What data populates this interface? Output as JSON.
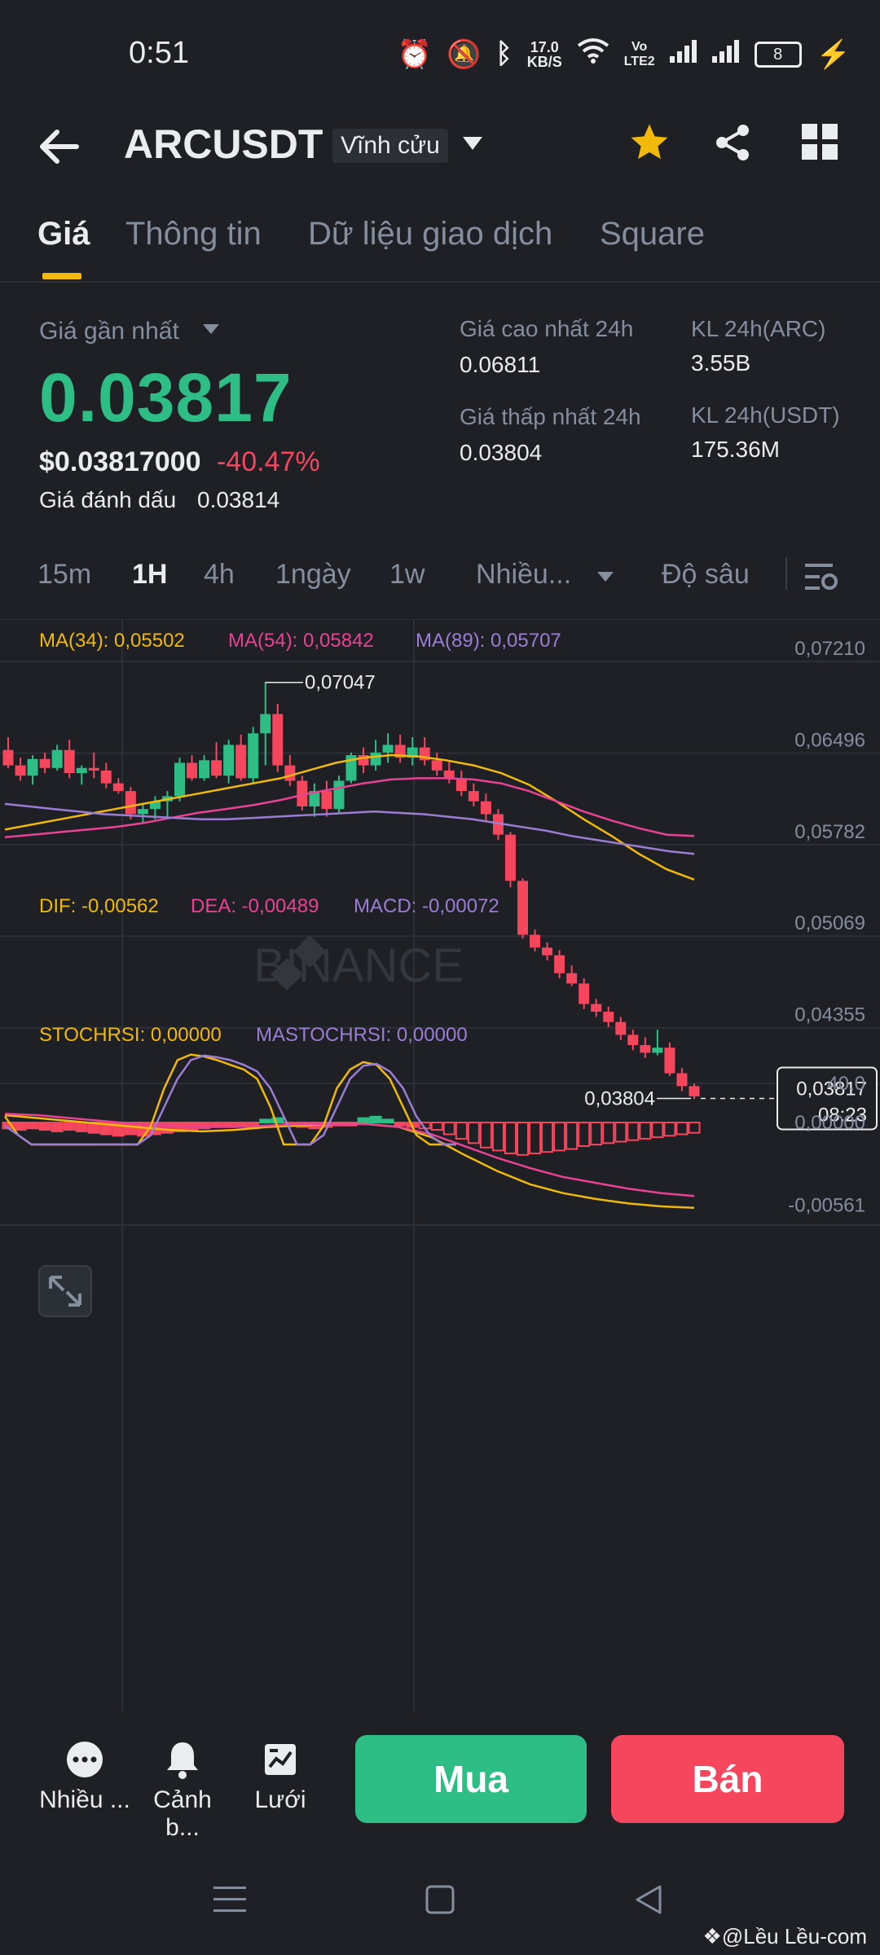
{
  "status": {
    "time": "0:51",
    "net_speed_top": "17.0",
    "net_speed_unit": "KB/S",
    "volte": "Vo\nLTE2",
    "battery": "8"
  },
  "header": {
    "symbol": "ARCUSDT",
    "badge": "Vĩnh cửu"
  },
  "tabs": [
    {
      "label": "Giá"
    },
    {
      "label": "Thông tin"
    },
    {
      "label": "Dữ liệu giao dịch"
    },
    {
      "label": "Square"
    }
  ],
  "ticker": {
    "last_label": "Giá gần nhất",
    "last_price": "0.03817",
    "usd_price": "$0.03817000",
    "change": "-40.47%",
    "mark_label": "Giá đánh dấu",
    "mark_price": "0.03814",
    "high_label": "Giá cao nhất 24h",
    "high_value": "0.06811",
    "low_label": "Giá thấp nhất 24h",
    "low_value": "0.03804",
    "vol_arc_label": "KL 24h(ARC)",
    "vol_arc_value": "3.55B",
    "vol_usdt_label": "KL 24h(USDT)",
    "vol_usdt_value": "175.36M"
  },
  "intervals": [
    {
      "label": "15m"
    },
    {
      "label": "1H"
    },
    {
      "label": "4h"
    },
    {
      "label": "1ngày"
    },
    {
      "label": "1w"
    },
    {
      "label": "Nhiều..."
    },
    {
      "label": "Độ sâu"
    }
  ],
  "chart_data": {
    "type": "candlestick",
    "watermark": "BINANCE",
    "ma_legend": [
      {
        "label": "MA(34): 0,05502",
        "color": "#f0b90b"
      },
      {
        "label": "MA(54): 0,05842",
        "color": "#e84393"
      },
      {
        "label": "MA(89): 0,05707",
        "color": "#9b7dd4"
      }
    ],
    "y_ticks": [
      "0,07210",
      "0,06496",
      "0,05782",
      "0,05069",
      "0,04355"
    ],
    "y_range": [
      0.0408,
      0.0735
    ],
    "high_marker": "0,07047",
    "low_marker": "0,03804",
    "current_price": "0,03817",
    "countdown": "08:23",
    "candles": [
      [
        0.0652,
        0.0662,
        0.0638,
        0.064
      ],
      [
        0.064,
        0.0646,
        0.0628,
        0.0632
      ],
      [
        0.0632,
        0.0648,
        0.0625,
        0.0645
      ],
      [
        0.0645,
        0.065,
        0.0634,
        0.0638
      ],
      [
        0.0638,
        0.0656,
        0.0636,
        0.0652
      ],
      [
        0.0652,
        0.066,
        0.063,
        0.0634
      ],
      [
        0.0634,
        0.064,
        0.0625,
        0.0638
      ],
      [
        0.0638,
        0.065,
        0.063,
        0.0636
      ],
      [
        0.0636,
        0.0642,
        0.0622,
        0.0626
      ],
      [
        0.0626,
        0.063,
        0.0618,
        0.062
      ],
      [
        0.062,
        0.0623,
        0.0598,
        0.0602
      ],
      [
        0.0602,
        0.061,
        0.0595,
        0.0606
      ],
      [
        0.0606,
        0.0616,
        0.0598,
        0.0612
      ],
      [
        0.0612,
        0.062,
        0.0598,
        0.0616
      ],
      [
        0.0616,
        0.0646,
        0.0612,
        0.0642
      ],
      [
        0.0642,
        0.0648,
        0.0628,
        0.063
      ],
      [
        0.063,
        0.0648,
        0.0628,
        0.0644
      ],
      [
        0.0644,
        0.0658,
        0.063,
        0.0632
      ],
      [
        0.0632,
        0.066,
        0.0626,
        0.0656
      ],
      [
        0.0656,
        0.0664,
        0.0628,
        0.063
      ],
      [
        0.063,
        0.067,
        0.0626,
        0.0665
      ],
      [
        0.0665,
        0.0705,
        0.064,
        0.068
      ],
      [
        0.068,
        0.0688,
        0.0635,
        0.064
      ],
      [
        0.064,
        0.0648,
        0.0624,
        0.0628
      ],
      [
        0.0628,
        0.0632,
        0.0605,
        0.0608
      ],
      [
        0.0608,
        0.0626,
        0.06,
        0.062
      ],
      [
        0.062,
        0.0628,
        0.06,
        0.0606
      ],
      [
        0.0606,
        0.0632,
        0.0602,
        0.0628
      ],
      [
        0.0628,
        0.065,
        0.0626,
        0.0648
      ],
      [
        0.0648,
        0.0654,
        0.0634,
        0.064
      ],
      [
        0.064,
        0.066,
        0.0636,
        0.065
      ],
      [
        0.065,
        0.0665,
        0.0642,
        0.0656
      ],
      [
        0.0656,
        0.0664,
        0.0642,
        0.0646
      ],
      [
        0.0646,
        0.0662,
        0.064,
        0.0654
      ],
      [
        0.0654,
        0.0662,
        0.064,
        0.0644
      ],
      [
        0.0644,
        0.065,
        0.0632,
        0.0636
      ],
      [
        0.0636,
        0.0644,
        0.0626,
        0.063
      ],
      [
        0.063,
        0.0636,
        0.0616,
        0.062
      ],
      [
        0.062,
        0.0626,
        0.0608,
        0.0612
      ],
      [
        0.0612,
        0.0618,
        0.0596,
        0.0602
      ],
      [
        0.0602,
        0.0606,
        0.0582,
        0.0586
      ],
      [
        0.0586,
        0.0588,
        0.0545,
        0.055
      ],
      [
        0.055,
        0.0552,
        0.0505,
        0.0508
      ],
      [
        0.0508,
        0.0512,
        0.0495,
        0.0498
      ],
      [
        0.0498,
        0.0502,
        0.0488,
        0.0492
      ],
      [
        0.0492,
        0.0496,
        0.0474,
        0.0478
      ],
      [
        0.0478,
        0.0484,
        0.0468,
        0.047
      ],
      [
        0.047,
        0.0474,
        0.045,
        0.0454
      ],
      [
        0.0454,
        0.0458,
        0.0444,
        0.0448
      ],
      [
        0.0448,
        0.0452,
        0.0436,
        0.044
      ],
      [
        0.044,
        0.0444,
        0.0426,
        0.043
      ],
      [
        0.043,
        0.0434,
        0.0418,
        0.0422
      ],
      [
        0.0422,
        0.0428,
        0.0412,
        0.0416
      ],
      [
        0.0416,
        0.0434,
        0.0414,
        0.042
      ],
      [
        0.042,
        0.0424,
        0.0398,
        0.04
      ],
      [
        0.04,
        0.0404,
        0.0386,
        0.039
      ],
      [
        0.039,
        0.0392,
        0.038,
        0.0382
      ]
    ],
    "ma34": [
      0.059,
      0.0594,
      0.0598,
      0.0602,
      0.0606,
      0.061,
      0.0614,
      0.0618,
      0.0622,
      0.0626,
      0.063,
      0.0636,
      0.0642,
      0.0646,
      0.0648,
      0.0647,
      0.0644,
      0.064,
      0.0634,
      0.0625,
      0.0612,
      0.0598,
      0.0585,
      0.0571,
      0.0559,
      0.0551
    ],
    "ma54": [
      0.0584,
      0.0586,
      0.0588,
      0.059,
      0.0592,
      0.0595,
      0.0599,
      0.0603,
      0.0606,
      0.0609,
      0.0613,
      0.0618,
      0.0622,
      0.0626,
      0.0629,
      0.063,
      0.063,
      0.0629,
      0.0626,
      0.062,
      0.0612,
      0.0604,
      0.0597,
      0.0591,
      0.0586,
      0.0585
    ],
    "ma89": [
      0.061,
      0.0608,
      0.0606,
      0.0604,
      0.0602,
      0.0601,
      0.06,
      0.0599,
      0.0598,
      0.0598,
      0.0599,
      0.06,
      0.0601,
      0.0602,
      0.0603,
      0.0604,
      0.0603,
      0.0602,
      0.06,
      0.0598,
      0.0595,
      0.0592,
      0.0589,
      0.0585,
      0.0582,
      0.0579,
      0.0576,
      0.0573,
      0.0571
    ],
    "macd_legend": [
      {
        "label": "DIF: -0,00562",
        "color": "#f0b90b"
      },
      {
        "label": "DEA: -0,00489",
        "color": "#e84393"
      },
      {
        "label": "MACD: -0,00072",
        "color": "#9b7dd4"
      }
    ],
    "macd_ticks": [
      "0,00000",
      "-0,00561"
    ],
    "macd_hist": [
      -0.0004,
      -0.0005,
      -0.0004,
      -0.0005,
      -0.0006,
      -0.0005,
      -0.0006,
      -0.0007,
      -0.0008,
      -0.0009,
      -0.0008,
      -0.0009,
      -0.0008,
      -0.0007,
      -0.0006,
      -0.0005,
      -0.0004,
      -0.0003,
      -0.0002,
      -0.0003,
      -0.0004,
      0.0002,
      0.0003,
      -0.0002,
      -0.0003,
      -0.0004,
      -0.0003,
      -0.0002,
      -0.0002,
      0.0003,
      0.0004,
      0.0002,
      -0.0002,
      -0.0003,
      -0.0004,
      -0.0005,
      -0.0008,
      -0.0011,
      -0.0014,
      -0.0017,
      -0.0019,
      -0.0021,
      -0.0022,
      -0.0021,
      -0.002,
      -0.0019,
      -0.0018,
      -0.0016,
      -0.0015,
      -0.0014,
      -0.0013,
      -0.0012,
      -0.0011,
      -0.001,
      -0.0009,
      -0.0008,
      -0.0007
    ],
    "dif": [
      0.0005,
      0.0003,
      0.0001,
      -0.0001,
      -0.0003,
      -0.0005,
      -0.0006,
      -0.0005,
      -0.0003,
      -0.0002,
      -0.0001,
      -0.0001,
      -0.0003,
      -0.001,
      -0.0022,
      -0.0033,
      -0.0042,
      -0.0048,
      -0.0052,
      -0.0055,
      -0.0057,
      -0.0058
    ],
    "dea": [
      0.0006,
      0.0005,
      0.0003,
      0.0001,
      -0.0001,
      -0.0002,
      -0.0003,
      -0.0003,
      -0.0002,
      -0.0001,
      -0.0001,
      -0.0001,
      -0.0003,
      -0.0008,
      -0.0016,
      -0.0024,
      -0.0031,
      -0.0037,
      -0.0041,
      -0.0045,
      -0.0048,
      -0.005
    ],
    "macd_range": [
      -0.0062,
      0.001
    ],
    "stoch_legend": [
      {
        "label": "STOCHRSI: 0,00000",
        "color": "#f0b90b"
      },
      {
        "label": "MASTOCHRSI: 0,00000",
        "color": "#9b7dd4"
      }
    ],
    "stoch_ticks": [
      "40,0"
    ],
    "stoch_range": [
      0,
      100
    ],
    "stochrsi": [
      30,
      10,
      0,
      0,
      0,
      0,
      0,
      0,
      0,
      0,
      0,
      20,
      60,
      90,
      96,
      94,
      90,
      85,
      80,
      70,
      40,
      0,
      0,
      0,
      20,
      60,
      80,
      88,
      85,
      70,
      40,
      10,
      0,
      0,
      0
    ],
    "mastochrsi": [
      20,
      10,
      0,
      0,
      0,
      0,
      0,
      0,
      0,
      0,
      0,
      10,
      40,
      70,
      90,
      95,
      93,
      90,
      85,
      78,
      60,
      30,
      0,
      0,
      10,
      40,
      70,
      84,
      86,
      78,
      60,
      30,
      10,
      0,
      0
    ]
  },
  "bottom": {
    "more_label": "Nhiều ...",
    "alert_label": "Cảnh b...",
    "grid_label": "Lưới",
    "buy_label": "Mua",
    "sell_label": "Bán"
  },
  "watermark_text": "@Lều Lều-com",
  "colors": {
    "up": "#2ebd85",
    "down": "#f6465d",
    "accent": "#f0b90b",
    "bg": "#1e2026"
  }
}
